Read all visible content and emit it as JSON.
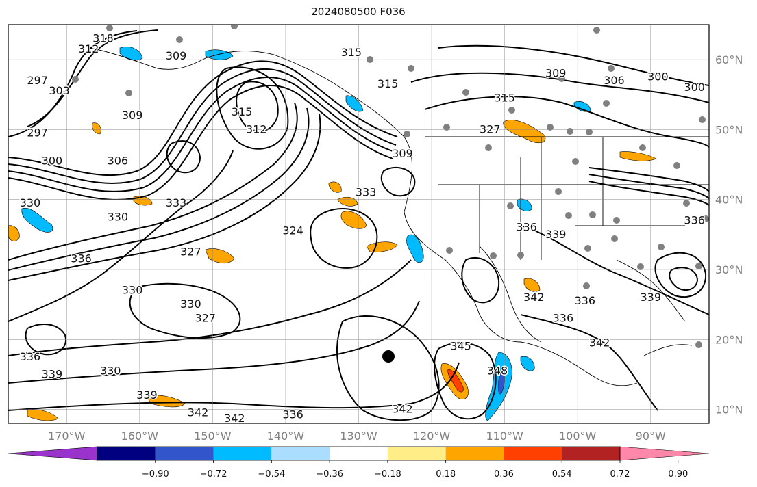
{
  "title": "2024080500 F036",
  "map": {
    "extent": {
      "lon_min": -178,
      "lon_max": -82,
      "lat_min": 8,
      "lat_max": 65
    },
    "lat_ticks": [
      {
        "value": 60,
        "label": "60°N"
      },
      {
        "value": 50,
        "label": "50°N"
      },
      {
        "value": 40,
        "label": "40°N"
      },
      {
        "value": 30,
        "label": "30°N"
      },
      {
        "value": 20,
        "label": "20°N"
      },
      {
        "value": 10,
        "label": "10°N"
      }
    ],
    "lon_ticks": [
      {
        "value": -170,
        "label": "170°W"
      },
      {
        "value": -160,
        "label": "160°W"
      },
      {
        "value": -150,
        "label": "150°W"
      },
      {
        "value": -140,
        "label": "140°W"
      },
      {
        "value": -130,
        "label": "130°W"
      },
      {
        "value": -120,
        "label": "120°W"
      },
      {
        "value": -110,
        "label": "110°W"
      },
      {
        "value": -100,
        "label": "100°W"
      },
      {
        "value": -90,
        "label": "90°W"
      }
    ],
    "grid": true,
    "contour_labels": [
      {
        "text": "318",
        "lon": -165,
        "lat": 63
      },
      {
        "text": "312",
        "lon": -167,
        "lat": 61.5
      },
      {
        "text": "309",
        "lon": -155,
        "lat": 60.5
      },
      {
        "text": "297",
        "lon": -174,
        "lat": 57
      },
      {
        "text": "303",
        "lon": -171,
        "lat": 55.5
      },
      {
        "text": "297",
        "lon": -174,
        "lat": 49.5
      },
      {
        "text": "300",
        "lon": -172,
        "lat": 45.5
      },
      {
        "text": "309",
        "lon": -161,
        "lat": 52
      },
      {
        "text": "306",
        "lon": -163,
        "lat": 45.5
      },
      {
        "text": "315",
        "lon": -146,
        "lat": 52.5
      },
      {
        "text": "312",
        "lon": -144,
        "lat": 50
      },
      {
        "text": "315",
        "lon": -131,
        "lat": 61
      },
      {
        "text": "315",
        "lon": -126,
        "lat": 56.5
      },
      {
        "text": "309",
        "lon": -124,
        "lat": 46.5
      },
      {
        "text": "315",
        "lon": -110,
        "lat": 54.5
      },
      {
        "text": "309",
        "lon": -103,
        "lat": 58
      },
      {
        "text": "306",
        "lon": -95,
        "lat": 57
      },
      {
        "text": "300",
        "lon": -89,
        "lat": 57.5
      },
      {
        "text": "300",
        "lon": -84,
        "lat": 56
      },
      {
        "text": "330",
        "lon": -175,
        "lat": 39.5
      },
      {
        "text": "330",
        "lon": -163,
        "lat": 37.5
      },
      {
        "text": "333",
        "lon": -155,
        "lat": 39.5
      },
      {
        "text": "336",
        "lon": -168,
        "lat": 31.5
      },
      {
        "text": "327",
        "lon": -153,
        "lat": 32.5
      },
      {
        "text": "324",
        "lon": -139,
        "lat": 35.5
      },
      {
        "text": "330",
        "lon": -161,
        "lat": 27
      },
      {
        "text": "330",
        "lon": -153,
        "lat": 25
      },
      {
        "text": "327",
        "lon": -151,
        "lat": 23
      },
      {
        "text": "336",
        "lon": -175,
        "lat": 17.5
      },
      {
        "text": "339",
        "lon": -172,
        "lat": 15
      },
      {
        "text": "330",
        "lon": -164,
        "lat": 15.5
      },
      {
        "text": "339",
        "lon": -159,
        "lat": 12
      },
      {
        "text": "342",
        "lon": -152,
        "lat": 9.5
      },
      {
        "text": "342",
        "lon": -147,
        "lat": 8.7
      },
      {
        "text": "336",
        "lon": -139,
        "lat": 9.2
      },
      {
        "text": "342",
        "lon": -124,
        "lat": 10
      },
      {
        "text": "345",
        "lon": -116,
        "lat": 19
      },
      {
        "text": "348",
        "lon": -111,
        "lat": 15.5
      },
      {
        "text": "336",
        "lon": -107,
        "lat": 36
      },
      {
        "text": "339",
        "lon": -103,
        "lat": 35
      },
      {
        "text": "342",
        "lon": -106,
        "lat": 26
      },
      {
        "text": "336",
        "lon": -102,
        "lat": 23
      },
      {
        "text": "336",
        "lon": -99,
        "lat": 25.5
      },
      {
        "text": "342",
        "lon": -97,
        "lat": 19.5
      },
      {
        "text": "339",
        "lon": -90,
        "lat": 26
      },
      {
        "text": "336",
        "lon": -84,
        "lat": 37
      },
      {
        "text": "327",
        "lon": -112,
        "lat": 50
      },
      {
        "text": "333",
        "lon": -129,
        "lat": 41
      }
    ]
  },
  "colorbar": {
    "colors": [
      "#9933cc",
      "#000080",
      "#3355cc",
      "#00bbff",
      "#aaddff",
      "#ffffff",
      "#ffee88",
      "#ffa500",
      "#ff4000",
      "#b22222",
      "#ff88aa"
    ],
    "tick_labels": [
      "−0.90",
      "−0.72",
      "−0.54",
      "−0.36",
      "−0.18",
      "0.18",
      "0.36",
      "0.54",
      "0.72",
      "0.90"
    ]
  }
}
